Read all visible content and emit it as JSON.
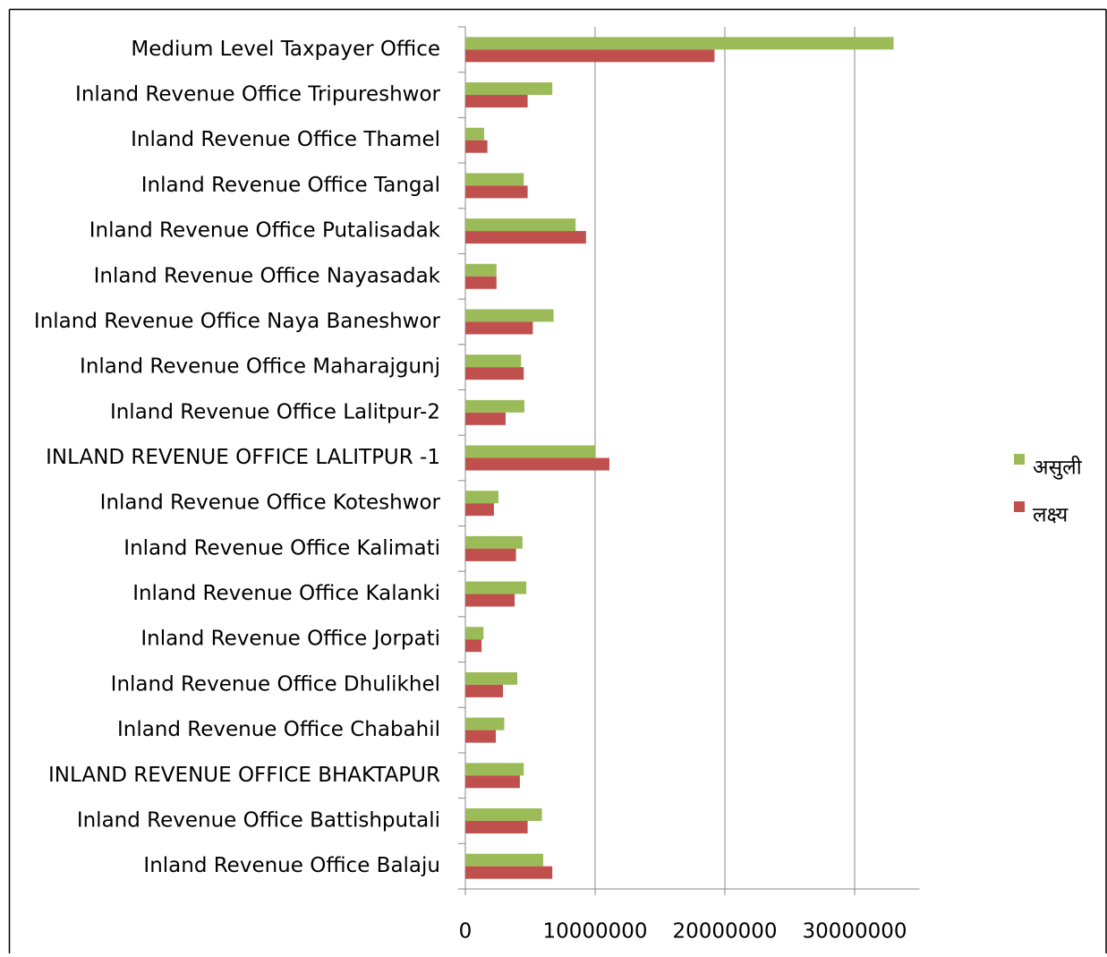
{
  "chart_data": {
    "type": "bar",
    "orientation": "horizontal",
    "categories": [
      "Medium Level Taxpayer Office",
      "Inland Revenue Office Tripureshwor",
      "Inland Revenue Office Thamel",
      "Inland Revenue Office Tangal",
      "Inland Revenue Office Putalisadak",
      "Inland Revenue Office Nayasadak",
      "Inland Revenue Office Naya Baneshwor",
      "Inland Revenue Office Maharajgunj",
      "Inland Revenue Office Lalitpur-2",
      "INLAND REVENUE OFFICE LALITPUR -1",
      "Inland Revenue Office Koteshwor",
      "Inland Revenue Office Kalimati",
      "Inland Revenue Office Kalanki",
      "Inland Revenue Office Jorpati",
      "Inland Revenue Office Dhulikhel",
      "Inland Revenue Office Chabahil",
      "INLAND REVENUE OFFICE BHAKTAPUR",
      "Inland Revenue Office Battishputali",
      "Inland Revenue Office Balaju"
    ],
    "series": [
      {
        "name": "असुली",
        "color": "#9bbb59",
        "values": [
          33000000,
          6700000,
          1450000,
          4500000,
          8500000,
          2400000,
          6800000,
          4300000,
          4550000,
          10000000,
          2550000,
          4400000,
          4700000,
          1400000,
          4000000,
          3000000,
          4500000,
          5900000,
          6000000
        ]
      },
      {
        "name": "लक्ष्य",
        "color": "#c0504d",
        "values": [
          19200000,
          4800000,
          1700000,
          4800000,
          9300000,
          2400000,
          5200000,
          4500000,
          3100000,
          11100000,
          2200000,
          3900000,
          3800000,
          1250000,
          2900000,
          2350000,
          4200000,
          4800000,
          6700000
        ]
      }
    ],
    "xlim": [
      0,
      35000000
    ],
    "xticks": [
      0,
      10000000,
      20000000,
      30000000
    ],
    "grid": true,
    "legend": "right"
  }
}
